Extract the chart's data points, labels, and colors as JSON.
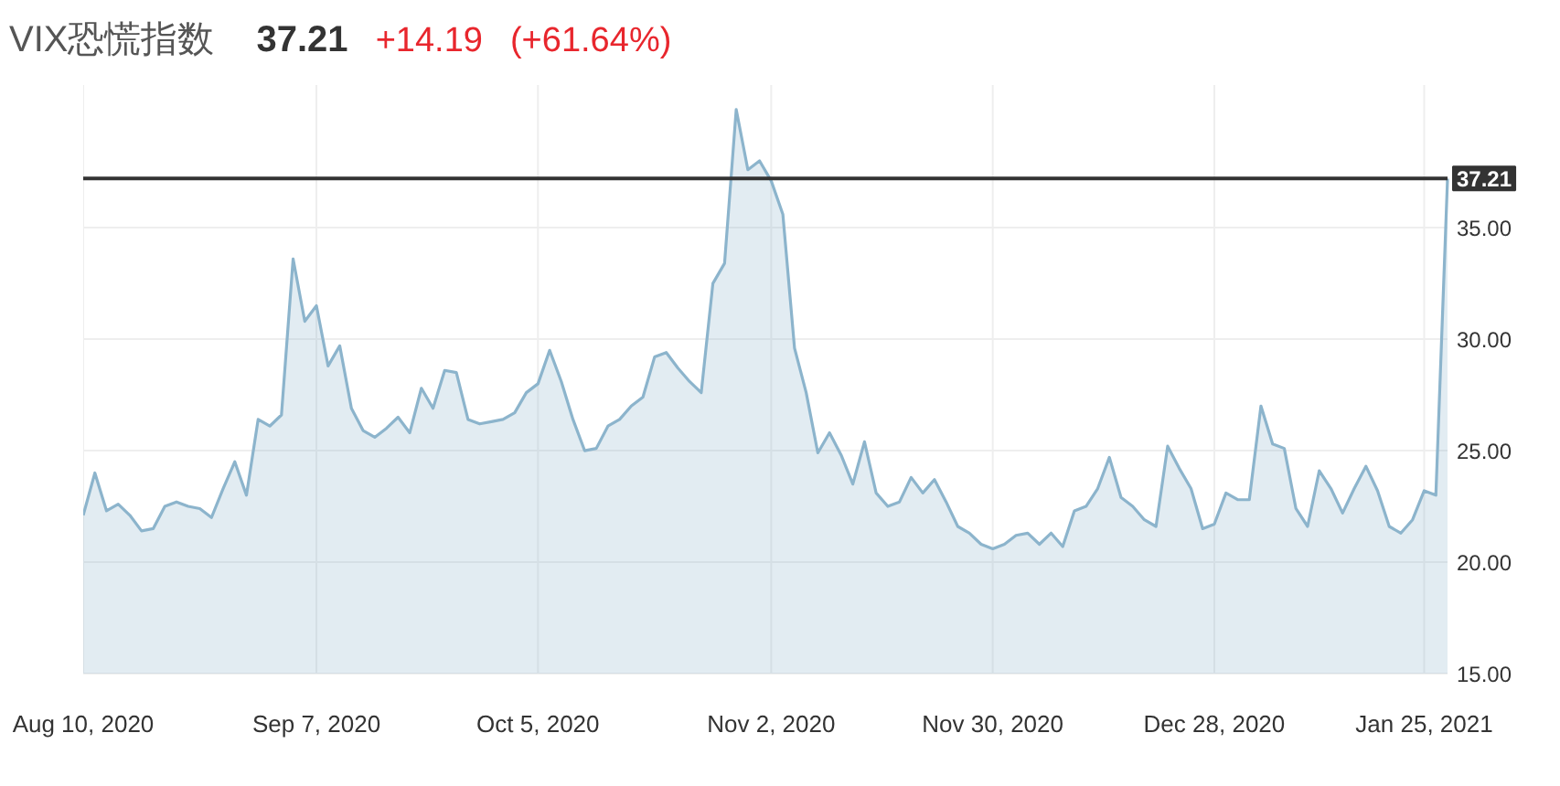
{
  "chart_data": {
    "type": "area",
    "title": "VIX恐慌指数",
    "annotations": [
      "37.21",
      "+14.19",
      "(+61.64%)"
    ],
    "categories": [
      "Aug 10, 2020",
      null,
      null,
      null,
      null,
      null,
      null,
      null,
      null,
      null,
      null,
      null,
      null,
      null,
      null,
      null,
      null,
      null,
      null,
      null,
      "Sep 7, 2020",
      null,
      null,
      null,
      null,
      null,
      null,
      null,
      null,
      null,
      null,
      null,
      null,
      null,
      null,
      null,
      null,
      null,
      null,
      "Oct 5, 2020",
      null,
      null,
      null,
      null,
      null,
      null,
      null,
      null,
      null,
      null,
      null,
      null,
      null,
      null,
      null,
      null,
      null,
      null,
      null,
      "Nov 2, 2020",
      null,
      null,
      null,
      null,
      null,
      null,
      null,
      null,
      null,
      null,
      null,
      null,
      null,
      null,
      null,
      null,
      null,
      null,
      "Nov 30, 2020",
      null,
      null,
      null,
      null,
      null,
      null,
      null,
      null,
      null,
      null,
      null,
      null,
      null,
      null,
      null,
      null,
      null,
      null,
      "Dec 28, 2020",
      null,
      null,
      null,
      null,
      null,
      null,
      null,
      null,
      null,
      null,
      null,
      null,
      null,
      null,
      null,
      null,
      null,
      "Jan 25, 2021",
      null,
      null
    ],
    "series": [
      {
        "color": "#8cb4cc",
        "values": [
          22.1,
          24.0,
          22.3,
          22.6,
          22.1,
          21.4,
          21.5,
          22.5,
          22.7,
          22.5,
          22.4,
          22.0,
          23.3,
          24.5,
          23.0,
          26.4,
          26.1,
          26.6,
          33.6,
          30.8,
          31.5,
          28.8,
          29.7,
          26.9,
          25.9,
          25.6,
          26.0,
          26.5,
          25.8,
          27.8,
          26.9,
          28.6,
          28.5,
          26.4,
          26.2,
          26.3,
          26.4,
          26.7,
          27.6,
          28.0,
          29.5,
          28.1,
          26.4,
          25.0,
          25.1,
          26.1,
          26.4,
          27.0,
          27.4,
          29.2,
          29.4,
          28.7,
          28.1,
          27.6,
          32.5,
          33.4,
          40.3,
          37.6,
          38.0,
          37.1,
          35.6,
          29.6,
          27.6,
          24.9,
          25.8,
          24.8,
          23.5,
          25.4,
          23.1,
          22.5,
          22.7,
          23.8,
          23.1,
          23.7,
          22.7,
          21.6,
          21.3,
          20.8,
          20.6,
          20.8,
          21.2,
          21.3,
          20.8,
          21.3,
          20.7,
          22.3,
          22.5,
          23.3,
          24.7,
          22.9,
          22.5,
          21.9,
          21.6,
          25.2,
          24.2,
          23.3,
          21.5,
          21.7,
          23.1,
          22.8,
          22.8,
          27.0,
          25.3,
          25.1,
          22.4,
          21.6,
          24.1,
          23.3,
          22.2,
          23.3,
          24.3,
          23.2,
          21.6,
          21.3,
          21.9,
          23.2,
          23.0,
          37.2
        ]
      }
    ],
    "ylim": [
      15,
      41.4
    ],
    "yticks": [
      {
        "value": 15,
        "label": "15.00"
      },
      {
        "value": 20,
        "label": "20.00"
      },
      {
        "value": 25,
        "label": "25.00"
      },
      {
        "value": 30,
        "label": "30.00"
      },
      {
        "value": 35,
        "label": "35.00"
      }
    ],
    "grid": true,
    "ref_lines": [
      {
        "axis": "y",
        "value": 37.21,
        "label": "37.21",
        "color": "#333333"
      }
    ]
  }
}
